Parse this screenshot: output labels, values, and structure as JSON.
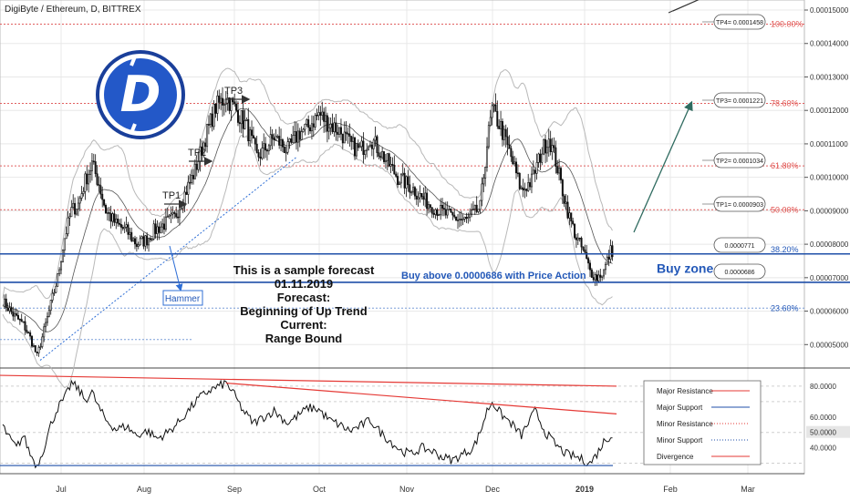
{
  "header": {
    "title": "DigiByte / Ethereum, D, BITTREX"
  },
  "colors": {
    "grid": "#e8e8e8",
    "candle": "#111111",
    "bollinger": "#b9b9b9",
    "ma": "#555555",
    "fib": "#e06060",
    "fib_label": "#e0504d",
    "zone": "#1f4fa8",
    "blue_text": "#2358b8",
    "trend": "#2f6fd6",
    "arrow": "#2f6b60",
    "rsi": "#111111",
    "resistance": "#e53935",
    "support": "#1f4fa8"
  },
  "logo": {
    "name": "digibyte-logo",
    "letter": "D"
  },
  "fib_levels": [
    {
      "label": "100.00%",
      "price": 0.0001458,
      "tp": "TP4= 0.0001458"
    },
    {
      "label": "78.60%",
      "price": 0.0001221,
      "tp": "TP3= 0.0001221"
    },
    {
      "label": "61.80%",
      "price": 0.0001034,
      "tp": "TP2= 0.0001034"
    },
    {
      "label": "50.00%",
      "price": 9.03e-05,
      "tp": "TP1= 0.0000903"
    },
    {
      "label": "38.20%",
      "price": 7.71e-05,
      "tp": "0.0000771"
    },
    {
      "label": "23.60%",
      "price": 6.09e-05,
      "tp": ""
    }
  ],
  "zone": {
    "upper": 7.71e-05,
    "lower": 6.86e-05,
    "upper_label": "0.0000771",
    "lower_label": "0.0000686",
    "buy_zone_label": "Buy zone",
    "buy_text": "Buy above 0.0000686 with Price Action"
  },
  "annotations": {
    "tp1": "TP1",
    "tp2": "TP2",
    "tp3": "TP3",
    "hammer": "Hammer",
    "forecast_lines": [
      "This is a sample forecast",
      "01.11.2019",
      "Forecast:",
      "Beginning of Up Trend",
      "Current:",
      "Range Bound"
    ]
  },
  "price_axis": {
    "ticks": [
      "0.00015000",
      "0.00014000",
      "0.00013000",
      "0.00012000",
      "0.00011000",
      "0.00010000",
      "0.00009000",
      "0.00008000",
      "0.00007000",
      "0.00006000",
      "0.00005000"
    ]
  },
  "rsi_axis": {
    "ticks": [
      "80.0000",
      "60.0000",
      "50.0000",
      "40.0000"
    ],
    "highlight": "50.0000"
  },
  "time_axis": {
    "labels": [
      "Jul",
      "Aug",
      "Sep",
      "Oct",
      "Nov",
      "Dec",
      "2019",
      "Feb",
      "Mar"
    ],
    "bold": "2019"
  },
  "legend": {
    "items": [
      {
        "label": "Major Resistance",
        "style": "major-res"
      },
      {
        "label": "Major Support",
        "style": "major-sup"
      },
      {
        "label": "Minor Resistance",
        "style": "minor-res"
      },
      {
        "label": "Minor Support",
        "style": "minor-sup"
      },
      {
        "label": "Divergence",
        "style": "divergence"
      }
    ]
  },
  "chart_data": {
    "type": "candlestick",
    "title": "DigiByte / Ethereum, D, BITTREX",
    "ylim": [
      4.3e-05,
      0.000153
    ],
    "close_anchors": [
      [
        0,
        6.3e-05
      ],
      [
        6,
        5.9e-05
      ],
      [
        12,
        5.6e-05
      ],
      [
        16,
        5.2e-05
      ],
      [
        20,
        4.65e-05
      ],
      [
        26,
        5.8e-05
      ],
      [
        32,
        7e-05
      ],
      [
        36,
        8.2e-05
      ],
      [
        40,
        9e-05
      ],
      [
        44,
        9.2e-05
      ],
      [
        48,
        9.9e-05
      ],
      [
        52,
        0.000104
      ],
      [
        56,
        9.8e-05
      ],
      [
        60,
        9e-05
      ],
      [
        66,
        8.6e-05
      ],
      [
        72,
        8.4e-05
      ],
      [
        78,
        8e-05
      ],
      [
        84,
        8.15e-05
      ],
      [
        88,
        8.4e-05
      ],
      [
        94,
        8.6e-05
      ],
      [
        100,
        8.8e-05
      ],
      [
        106,
        9.5e-05
      ],
      [
        112,
        0.000102
      ],
      [
        118,
        0.000112
      ],
      [
        124,
        0.000121
      ],
      [
        130,
        0.000124
      ],
      [
        136,
        0.00012
      ],
      [
        142,
        0.000115
      ],
      [
        148,
        0.000106
      ],
      [
        152,
        0.000108
      ],
      [
        158,
        0.000112
      ],
      [
        166,
        0.000108
      ],
      [
        172,
        0.000113
      ],
      [
        178,
        0.000115
      ],
      [
        184,
        0.000119
      ],
      [
        190,
        0.000116
      ],
      [
        196,
        0.000114
      ],
      [
        202,
        0.00011
      ],
      [
        208,
        0.000108
      ],
      [
        214,
        0.000112
      ],
      [
        222,
        0.000106
      ],
      [
        230,
        0.0001
      ],
      [
        238,
        9.7e-05
      ],
      [
        246,
        9.3e-05
      ],
      [
        254,
        9e-05
      ],
      [
        262,
        8.8e-05
      ],
      [
        270,
        8.7e-05
      ],
      [
        278,
        9.1e-05
      ],
      [
        282,
        0.00011
      ],
      [
        285,
        0.00012
      ],
      [
        290,
        0.000115
      ],
      [
        296,
        0.000106
      ],
      [
        302,
        9.6e-05
      ],
      [
        308,
        9.9e-05
      ],
      [
        314,
        0.000108
      ],
      [
        318,
        0.000112
      ],
      [
        322,
        0.000105
      ],
      [
        326,
        9.6e-05
      ],
      [
        330,
        8.8e-05
      ],
      [
        334,
        8.2e-05
      ],
      [
        338,
        7.8e-05
      ],
      [
        342,
        7.2e-05
      ],
      [
        346,
        7e-05
      ],
      [
        350,
        7.2e-05
      ],
      [
        354,
        7.8e-05
      ]
    ],
    "rsi_anchors": [
      [
        0,
        54
      ],
      [
        4,
        46
      ],
      [
        8,
        40
      ],
      [
        12,
        48
      ],
      [
        16,
        36
      ],
      [
        20,
        28
      ],
      [
        24,
        40
      ],
      [
        28,
        55
      ],
      [
        32,
        66
      ],
      [
        36,
        72
      ],
      [
        40,
        82
      ],
      [
        44,
        78
      ],
      [
        48,
        71
      ],
      [
        52,
        76
      ],
      [
        56,
        66
      ],
      [
        60,
        58
      ],
      [
        66,
        52
      ],
      [
        72,
        54
      ],
      [
        78,
        48
      ],
      [
        84,
        51
      ],
      [
        90,
        46
      ],
      [
        96,
        50
      ],
      [
        102,
        56
      ],
      [
        108,
        64
      ],
      [
        114,
        72
      ],
      [
        120,
        77
      ],
      [
        126,
        80
      ],
      [
        130,
        82
      ],
      [
        134,
        76
      ],
      [
        140,
        64
      ],
      [
        146,
        56
      ],
      [
        152,
        60
      ],
      [
        158,
        64
      ],
      [
        166,
        56
      ],
      [
        172,
        61
      ],
      [
        178,
        66
      ],
      [
        184,
        65
      ],
      [
        190,
        58
      ],
      [
        196,
        55
      ],
      [
        202,
        51
      ],
      [
        208,
        54
      ],
      [
        214,
        58
      ],
      [
        220,
        50
      ],
      [
        226,
        44
      ],
      [
        232,
        38
      ],
      [
        238,
        36
      ],
      [
        244,
        40
      ],
      [
        250,
        38
      ],
      [
        256,
        34
      ],
      [
        262,
        32
      ],
      [
        268,
        36
      ],
      [
        274,
        40
      ],
      [
        278,
        50
      ],
      [
        282,
        64
      ],
      [
        285,
        70
      ],
      [
        290,
        62
      ],
      [
        296,
        56
      ],
      [
        302,
        48
      ],
      [
        306,
        56
      ],
      [
        310,
        64
      ],
      [
        316,
        50
      ],
      [
        322,
        42
      ],
      [
        328,
        36
      ],
      [
        334,
        34
      ],
      [
        338,
        32
      ],
      [
        342,
        30
      ],
      [
        346,
        36
      ],
      [
        350,
        44
      ],
      [
        354,
        48
      ]
    ],
    "rsi_ylim": [
      25,
      90
    ],
    "rsi_lines": {
      "major_support": 28.5,
      "resistance_start": [
        130,
        82
      ],
      "resistance_end": [
        355,
        80
      ],
      "divergence_start": [
        130,
        82
      ],
      "divergence_end": [
        355,
        62
      ]
    }
  }
}
